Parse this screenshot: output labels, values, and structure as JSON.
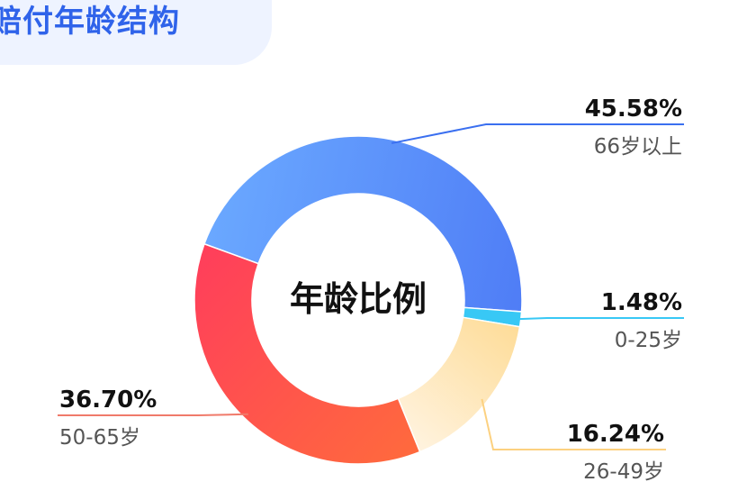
{
  "header": {
    "title": "赔付年龄结构"
  },
  "chart_data": {
    "type": "pie",
    "variant": "donut",
    "title": "赔付年龄结构",
    "center_label": "年龄比例",
    "slices": [
      {
        "label": "66岁以上",
        "value": 45.58,
        "value_label": "45.58%",
        "color_start": "#6aa8ff",
        "color_end": "#4f7df6",
        "line_color": "#3a6ff0"
      },
      {
        "label": "0-25岁",
        "value": 1.48,
        "value_label": "1.48%",
        "color_start": "#38c8f5",
        "color_end": "#38c8f5",
        "line_color": "#38c8f5"
      },
      {
        "label": "26-49岁",
        "value": 16.24,
        "value_label": "16.24%",
        "color_start": "#fedc98",
        "color_end": "#fff3df",
        "line_color": "#fcd180"
      },
      {
        "label": "50-65岁",
        "value": 36.7,
        "value_label": "36.70%",
        "color_start": "#ff6a3d",
        "color_end": "#ff3e5b",
        "line_color": "#f07a6a"
      }
    ],
    "legend": "callouts"
  }
}
